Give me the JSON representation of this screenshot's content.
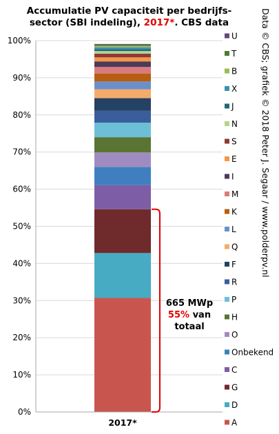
{
  "credit": "Data © CBS; grafiek © 2018 Peter J. Segaar / www.polderpv.nl",
  "chart_data": {
    "type": "bar",
    "stacked": true,
    "title": {
      "line1": "Accumulatie PV capaciteit per bedrijfs-",
      "line2_before": "sector (SBI indeling), ",
      "line2_highlight": "2017*",
      "line2_after": ". CBS data"
    },
    "categories": [
      "2017*"
    ],
    "ylim": [
      0,
      100
    ],
    "yticks": [
      "0%",
      "10%",
      "20%",
      "30%",
      "40%",
      "50%",
      "60%",
      "70%",
      "80%",
      "90%",
      "100%"
    ],
    "grid": true,
    "legend_position": "right",
    "series": [
      {
        "name": "A",
        "values": [
          30.7
        ],
        "color": "#c9564e"
      },
      {
        "name": "D",
        "values": [
          12.1
        ],
        "color": "#47abc4"
      },
      {
        "name": "G",
        "values": [
          11.8
        ],
        "color": "#6f2a2b"
      },
      {
        "name": "C",
        "values": [
          6.5
        ],
        "color": "#7d5ea6"
      },
      {
        "name": "Onbekend",
        "values": [
          4.9
        ],
        "color": "#3f7fbf"
      },
      {
        "name": "O",
        "values": [
          3.9
        ],
        "color": "#9f8bbf"
      },
      {
        "name": "H",
        "values": [
          4.1
        ],
        "color": "#5a7433"
      },
      {
        "name": "P",
        "values": [
          3.9
        ],
        "color": "#6dbfd8"
      },
      {
        "name": "R",
        "values": [
          3.2
        ],
        "color": "#3a5d9c"
      },
      {
        "name": "F",
        "values": [
          3.4
        ],
        "color": "#254163"
      },
      {
        "name": "Q",
        "values": [
          2.4
        ],
        "color": "#f5ab6b"
      },
      {
        "name": "L",
        "values": [
          2.1
        ],
        "color": "#6b8fcb"
      },
      {
        "name": "K",
        "values": [
          2.1
        ],
        "color": "#b65e12"
      },
      {
        "name": "M",
        "values": [
          1.8
        ],
        "color": "#d97b7b"
      },
      {
        "name": "I",
        "values": [
          1.5
        ],
        "color": "#4a3b5a"
      },
      {
        "name": "E",
        "values": [
          1.1
        ],
        "color": "#f79646"
      },
      {
        "name": "S",
        "values": [
          1.0
        ],
        "color": "#8f3a3a"
      },
      {
        "name": "N",
        "values": [
          0.7
        ],
        "color": "#b5d48b"
      },
      {
        "name": "J",
        "values": [
          0.5
        ],
        "color": "#1d6b75"
      },
      {
        "name": "X",
        "values": [
          0.5
        ],
        "color": "#3e8fb5"
      },
      {
        "name": "B",
        "values": [
          0.4
        ],
        "color": "#9bbb59"
      },
      {
        "name": "T",
        "values": [
          0.3
        ],
        "color": "#4f7b2e"
      },
      {
        "name": "U",
        "values": [
          0.2
        ],
        "color": "#604a7b"
      }
    ],
    "annotation": {
      "range": [
        0,
        54.6
      ],
      "color": "#e00000",
      "line1": "665 MWp",
      "line2_highlight": "55%",
      "line2_rest": " van",
      "line3": "totaal"
    }
  }
}
